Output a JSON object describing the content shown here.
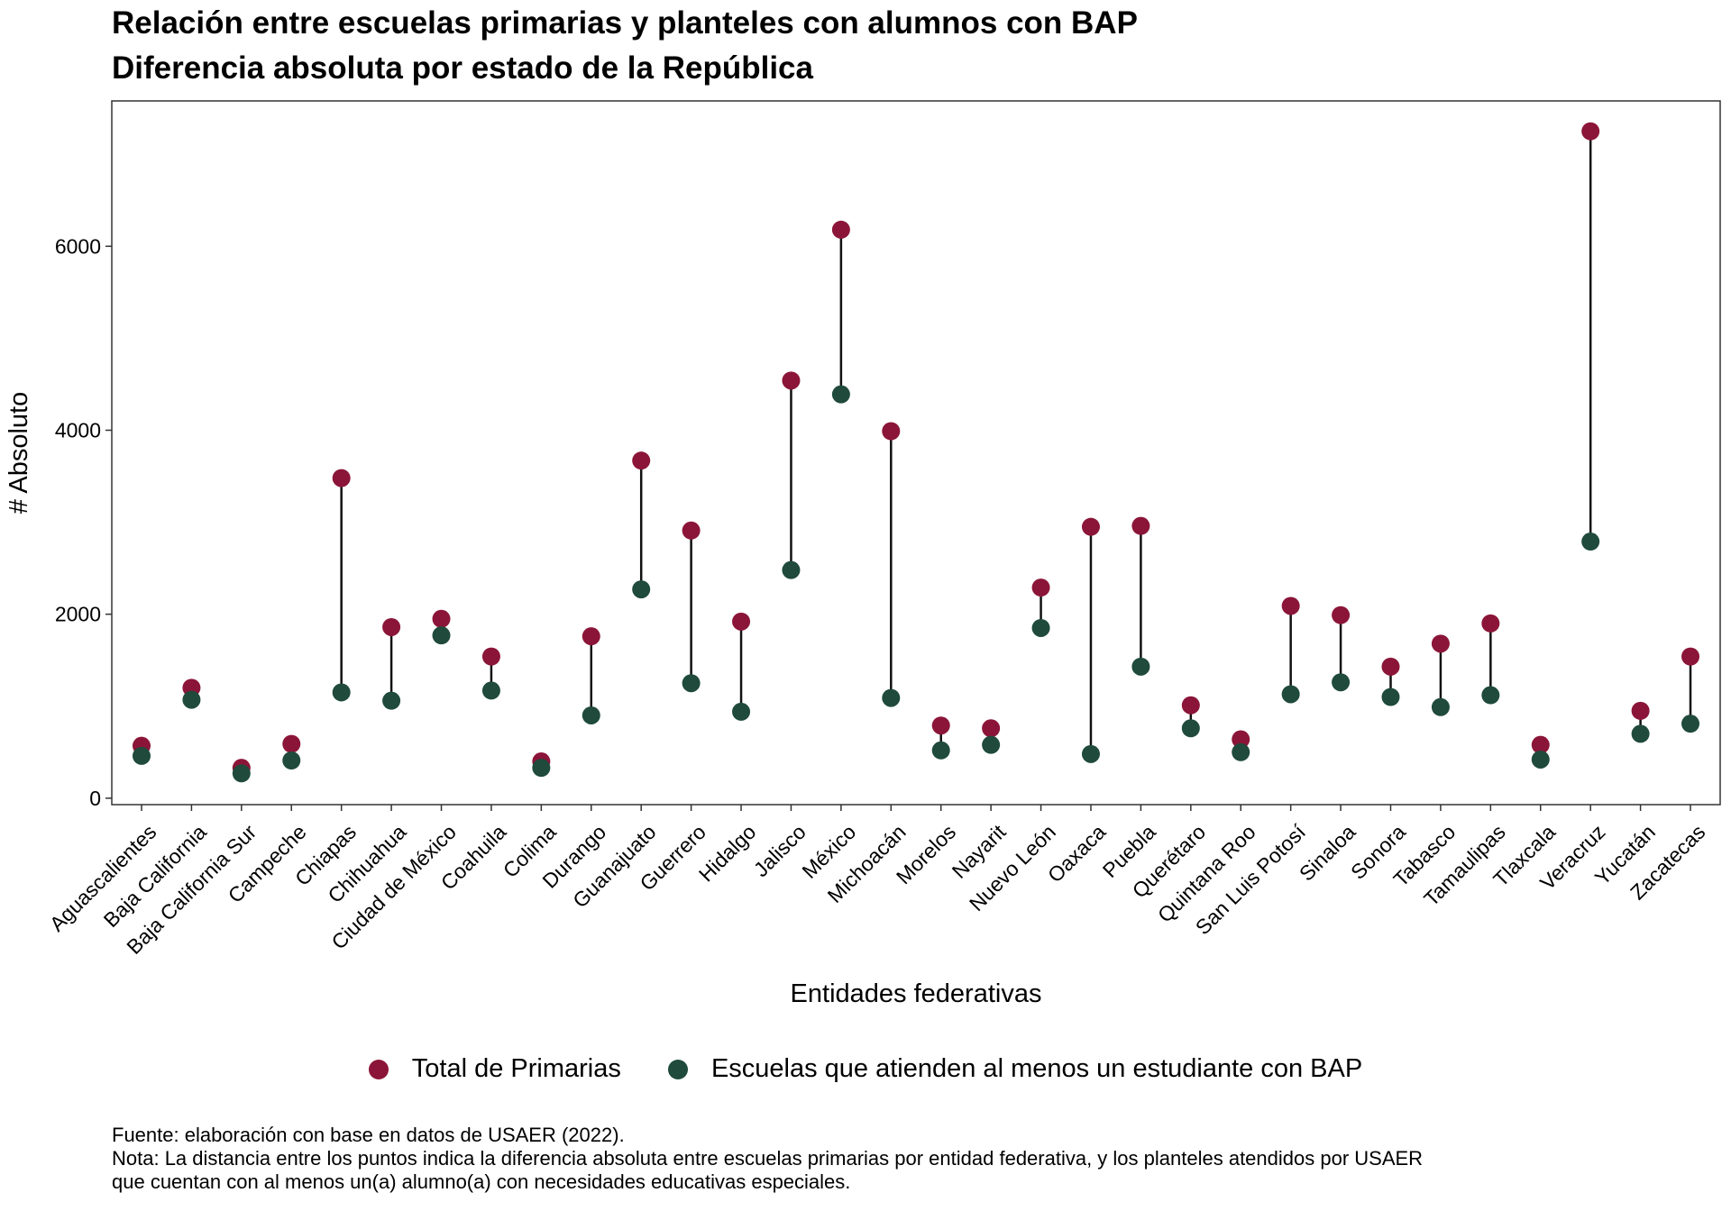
{
  "chart_data": {
    "type": "dumbbell",
    "title": "Relación entre escuelas primarias y planteles con alumnos con BAP",
    "subtitle": "Diferencia absoluta por estado de la República",
    "xlabel": "Entidades federativas",
    "ylabel": "# Absoluto",
    "ylim": [
      -70,
      7580
    ],
    "yticks": [
      0,
      2000,
      4000,
      6000
    ],
    "grid": false,
    "legend_position": "bottom",
    "categories": [
      "Aguascalientes",
      "Baja California",
      "Baja California Sur",
      "Campeche",
      "Chiapas",
      "Chihuahua",
      "Ciudad de México",
      "Coahuila",
      "Colima",
      "Durango",
      "Guanajuato",
      "Guerrero",
      "Hidalgo",
      "Jalisco",
      "México",
      "Michoacán",
      "Morelos",
      "Nayarit",
      "Nuevo León",
      "Oaxaca",
      "Puebla",
      "Querétaro",
      "Quintana Roo",
      "San Luis Potosí",
      "Sinaloa",
      "Sonora",
      "Tabasco",
      "Tamaulipas",
      "Tlaxcala",
      "Veracruz",
      "Yucatán",
      "Zacatecas"
    ],
    "series": [
      {
        "name": "Total de Primarias",
        "color": "#8B1538",
        "values": [
          570,
          1200,
          330,
          590,
          3480,
          1860,
          1950,
          1540,
          400,
          1760,
          3670,
          2910,
          1920,
          4540,
          6180,
          3990,
          790,
          760,
          2290,
          2950,
          2960,
          1010,
          640,
          2090,
          1990,
          1430,
          1680,
          1900,
          580,
          7250,
          950,
          1540
        ]
      },
      {
        "name": "Escuelas que atienden al menos un estudiante con BAP",
        "color": "#1F4A3C",
        "values": [
          460,
          1070,
          270,
          410,
          1150,
          1060,
          1770,
          1170,
          330,
          900,
          2270,
          1250,
          940,
          2480,
          4390,
          1090,
          520,
          580,
          1850,
          480,
          1430,
          760,
          500,
          1130,
          1260,
          1100,
          990,
          1120,
          420,
          2790,
          700,
          810
        ]
      }
    ]
  },
  "caption": {
    "line1": "Fuente: elaboración con base en datos de USAER (2022).",
    "line2": "Nota: La distancia entre los puntos indica la diferencia absoluta entre escuelas primarias por entidad federativa, y los planteles atendidos por USAER",
    "line3": "que cuentan con al menos un(a) alumno(a) con necesidades educativas especiales."
  }
}
